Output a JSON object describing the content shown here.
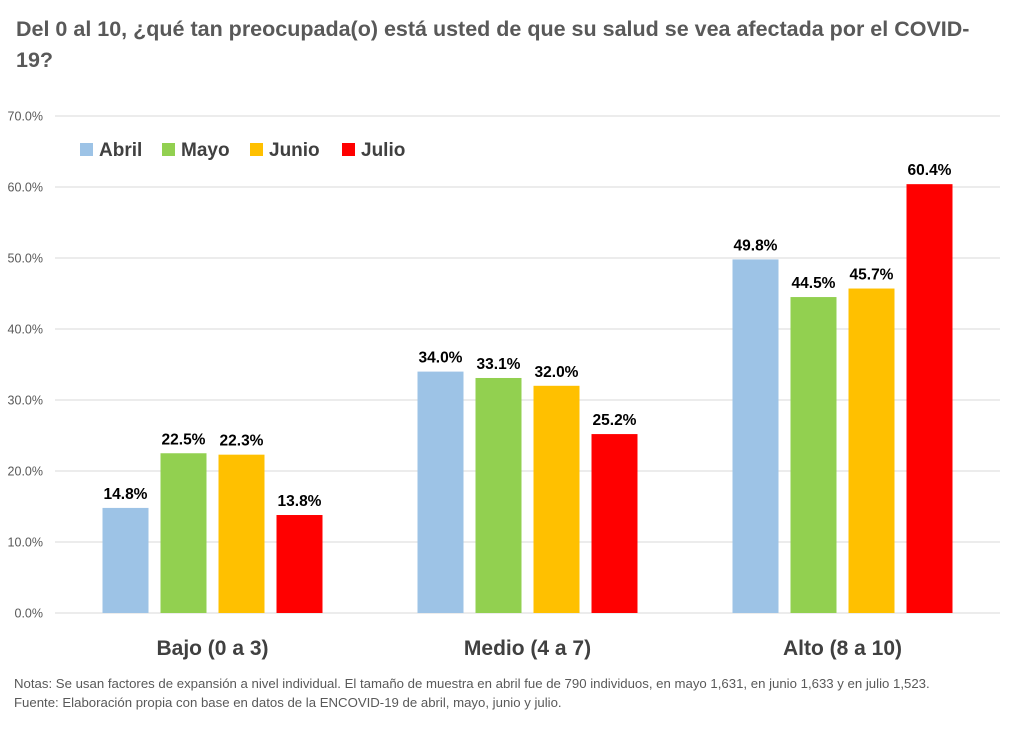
{
  "title": "Del 0 al 10, ¿qué tan preocupada(o) está usted de que su salud se vea afectada por el COVID-19?",
  "notes": [
    "Notas: Se usan factores de expansión a nivel individual.  El tamaño de muestra en abril fue de 790 individuos,  en mayo 1,631, en junio 1,633 y en julio 1,523.",
    "Fuente: Elaboración propia con base en datos de la ENCOVID-19 de abril, mayo, junio y julio."
  ],
  "chart_data": {
    "type": "bar",
    "categories": [
      "Bajo (0 a 3)",
      "Medio (4 a 7)",
      "Alto (8 a 10)"
    ],
    "series": [
      {
        "name": "Abril",
        "color": "#9DC3E6",
        "values": [
          14.8,
          34.0,
          49.8
        ],
        "labels": [
          "14.8%",
          "34.0%",
          "49.8%"
        ]
      },
      {
        "name": "Mayo",
        "color": "#92D050",
        "values": [
          22.5,
          33.1,
          44.5
        ],
        "labels": [
          "22.5%",
          "33.1%",
          "44.5%"
        ]
      },
      {
        "name": "Junio",
        "color": "#FFC000",
        "values": [
          22.3,
          32.0,
          45.7
        ],
        "labels": [
          "22.3%",
          "32.0%",
          "45.7%"
        ]
      },
      {
        "name": "Julio",
        "color": "#FF0000",
        "values": [
          13.8,
          25.2,
          60.4
        ],
        "labels": [
          "13.8%",
          "25.2%",
          "60.4%"
        ]
      }
    ],
    "yticks": [
      "0.0%",
      "10.0%",
      "20.0%",
      "30.0%",
      "40.0%",
      "50.0%",
      "60.0%",
      "70.0%"
    ],
    "ylim": [
      0,
      70
    ],
    "grid": true,
    "legend": "top-left",
    "gridColor": "#D9D9D9"
  }
}
